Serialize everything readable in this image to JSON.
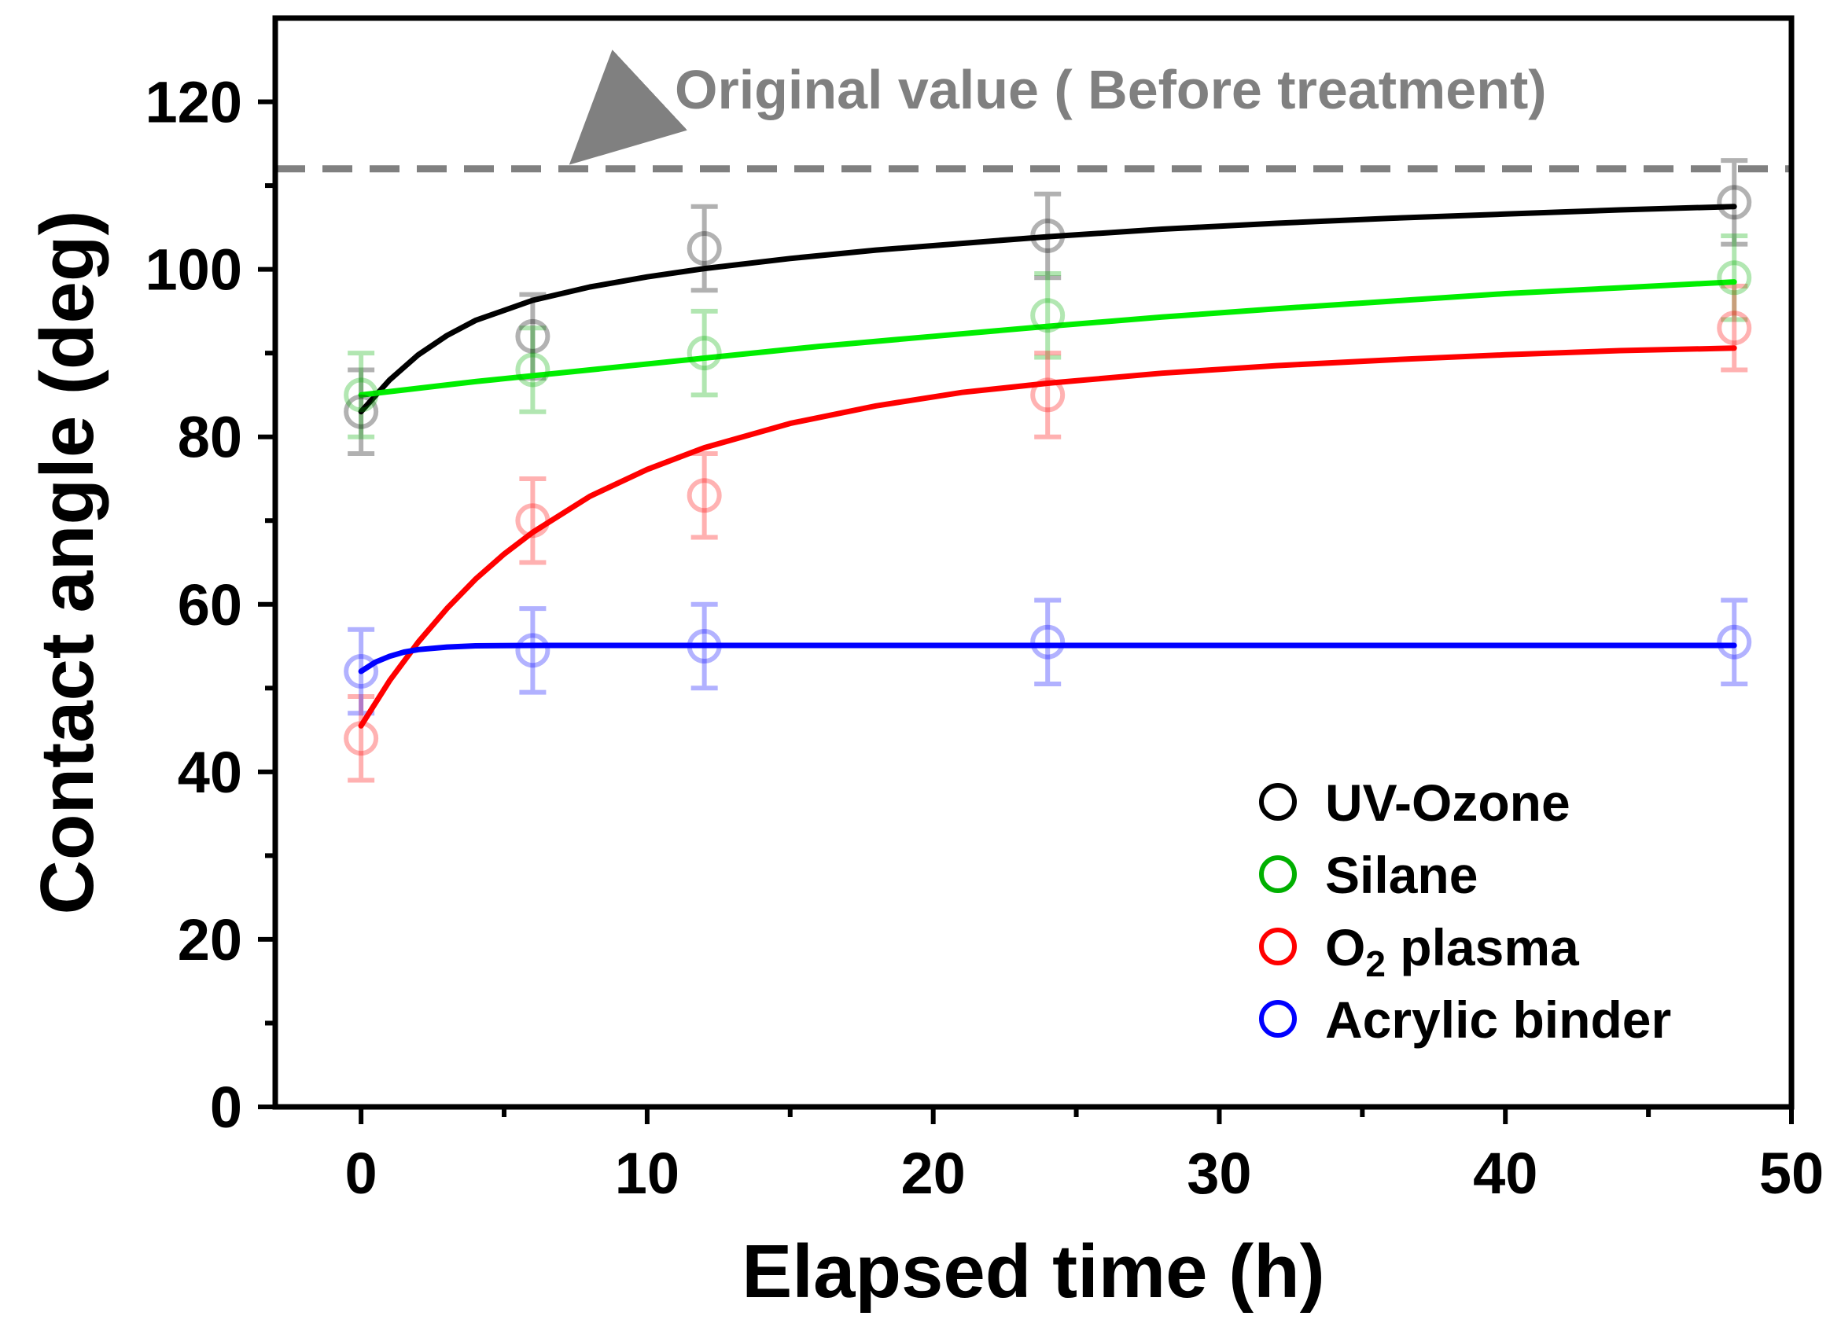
{
  "chart_data": {
    "type": "scatter",
    "title": "",
    "xlabel": "Elapsed time (h)",
    "ylabel": "Contact angle (deg)",
    "xlim": [
      -3,
      50
    ],
    "ylim": [
      0,
      130
    ],
    "x_ticks": [
      0,
      10,
      20,
      30,
      40,
      50
    ],
    "y_ticks": [
      0,
      20,
      40,
      60,
      80,
      100,
      120
    ],
    "x_minor_ticks": [
      5,
      15,
      25,
      35,
      45
    ],
    "y_minor_ticks": [
      10,
      30,
      50,
      70,
      90,
      110
    ],
    "reference_line": {
      "y": 112,
      "label": "Original value ( Before treatment)",
      "color": "#808080"
    },
    "series": [
      {
        "name": "UV-Ozone",
        "color": "#000000",
        "x": [
          0,
          6,
          12,
          24,
          48
        ],
        "y": [
          83,
          92,
          102.5,
          104,
          108
        ],
        "err": [
          5,
          5,
          5,
          5,
          5
        ],
        "fit_x": [
          0,
          1,
          2,
          3,
          4,
          6,
          8,
          10,
          12,
          15,
          18,
          21,
          24,
          28,
          32,
          36,
          40,
          44,
          48
        ],
        "fit_y": [
          83,
          86.8,
          89.8,
          92.1,
          93.9,
          96.3,
          97.9,
          99.1,
          100.1,
          101.3,
          102.3,
          103.1,
          103.9,
          104.8,
          105.5,
          106.1,
          106.6,
          107.1,
          107.5
        ]
      },
      {
        "name": "Silane",
        "color": "#00b000",
        "fit_color": "#00ee00",
        "x": [
          0,
          6,
          12,
          24,
          48
        ],
        "y": [
          85,
          88,
          90,
          94.5,
          99
        ],
        "err": [
          5,
          5,
          5,
          5,
          5
        ],
        "fit_x": [
          0,
          4,
          8,
          12,
          16,
          20,
          24,
          28,
          32,
          36,
          40,
          44,
          48
        ],
        "fit_y": [
          85,
          86.6,
          88,
          89.4,
          90.8,
          92,
          93.2,
          94.3,
          95.3,
          96.2,
          97.1,
          97.8,
          98.5
        ]
      },
      {
        "name": "O2 plasma",
        "name_main": "O",
        "name_sub": "2",
        "name_rest": " plasma",
        "color": "#ff0000",
        "x": [
          0,
          6,
          12,
          24,
          48
        ],
        "y": [
          44,
          70,
          73,
          85,
          93
        ],
        "err": [
          5,
          5,
          5,
          5,
          5
        ],
        "fit_x": [
          0,
          1,
          2,
          3,
          4,
          5,
          6,
          8,
          10,
          12,
          15,
          18,
          21,
          24,
          28,
          32,
          36,
          40,
          44,
          48
        ],
        "fit_y": [
          45.5,
          50.9,
          55.5,
          59.5,
          63,
          66,
          68.6,
          72.9,
          76.1,
          78.7,
          81.6,
          83.7,
          85.3,
          86.4,
          87.6,
          88.5,
          89.2,
          89.8,
          90.3,
          90.6
        ]
      },
      {
        "name": "Acrylic binder",
        "color": "#0000ff",
        "x": [
          0,
          6,
          12,
          24,
          48
        ],
        "y": [
          52,
          54.5,
          55,
          55.5,
          55.5
        ],
        "err": [
          5,
          5,
          5,
          5,
          5
        ],
        "fit_x": [
          0,
          0.5,
          1,
          1.5,
          2,
          3,
          4,
          6,
          10,
          20,
          30,
          40,
          48
        ],
        "fit_y": [
          52,
          53.1,
          53.8,
          54.3,
          54.6,
          54.9,
          55.05,
          55.1,
          55.1,
          55.1,
          55.1,
          55.1,
          55.1
        ]
      }
    ],
    "legend_position": "bottom-right"
  }
}
